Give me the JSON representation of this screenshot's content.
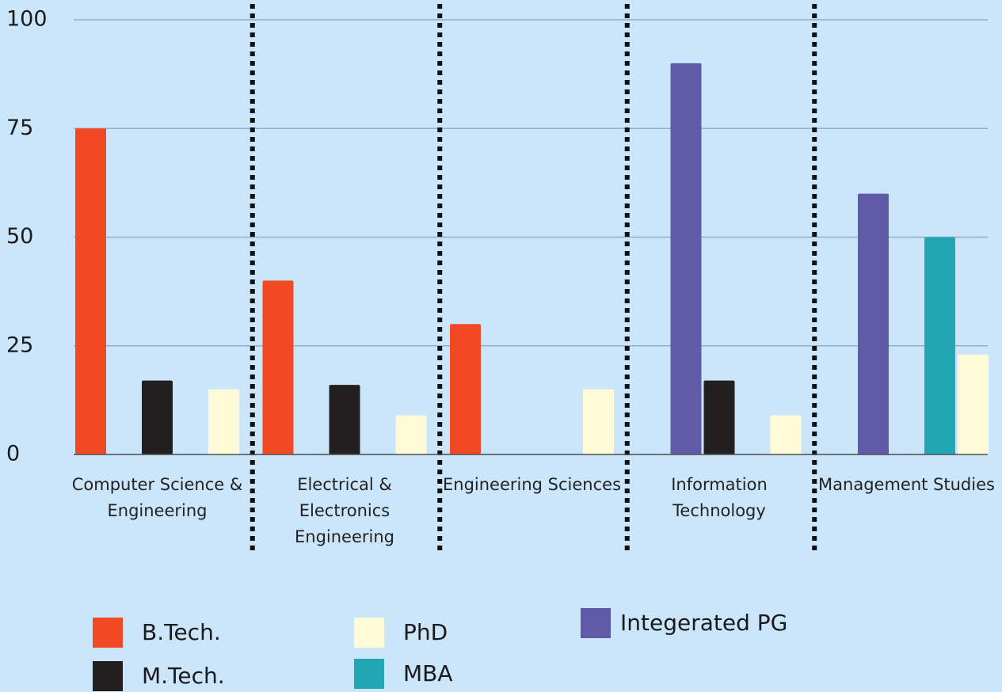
{
  "chart_data": {
    "type": "bar",
    "categories": [
      "Computer Science & Engineering",
      "Electrical & Electronics Engineering",
      "Engineering Sciences",
      "Information Technology",
      "Management Studies"
    ],
    "series": [
      {
        "name": "B.Tech.",
        "color": "#f04923",
        "values": [
          75,
          40,
          30,
          null,
          null
        ]
      },
      {
        "name": "Integerated PG",
        "color": "#5f5ba8",
        "values": [
          null,
          null,
          null,
          90,
          60
        ]
      },
      {
        "name": "M.Tech.",
        "color": "#231f20",
        "values": [
          17,
          16,
          null,
          17,
          null
        ]
      },
      {
        "name": "MBA",
        "color": "#22a6b3",
        "values": [
          null,
          null,
          null,
          null,
          50
        ]
      },
      {
        "name": "PhD",
        "color": "#fffbd9",
        "values": [
          15,
          9,
          15,
          9,
          23
        ]
      }
    ],
    "ylim": [
      0,
      100
    ],
    "yticks": [
      0,
      25,
      50,
      75,
      100
    ],
    "grid": true
  }
}
